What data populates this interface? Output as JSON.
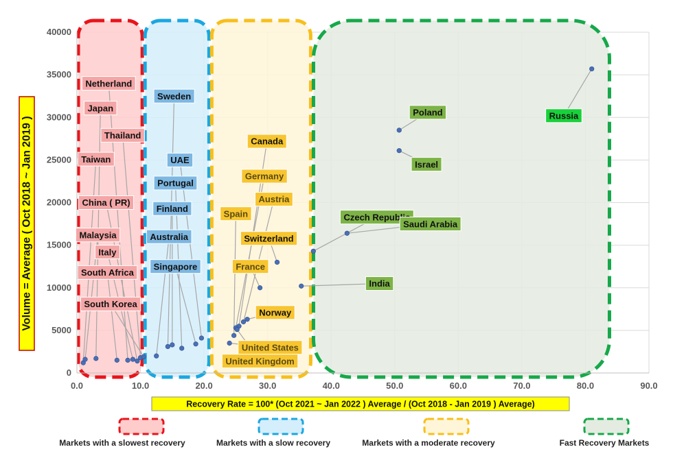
{
  "chart_data": {
    "type": "scatter",
    "xlabel": "Recovery Rate = 100* (Oct 2021 ~ Jan 2022 ) Average / (Oct 2018  - Jan 2019 )  Average)",
    "ylabel": "Volume = Average ( Oct 2018 ~ Jan 2019 )",
    "xlim": [
      0,
      90
    ],
    "ylim": [
      0,
      40000
    ],
    "x_ticks": [
      "0.0",
      "10.0",
      "20.0",
      "30.0",
      "40.0",
      "50.0",
      "60.0",
      "70.0",
      "80.0",
      "90.0"
    ],
    "y_ticks": [
      "0",
      "5000",
      "10000",
      "15000",
      "20000",
      "25000",
      "30000",
      "35000",
      "40000"
    ],
    "grid": true,
    "groups": [
      {
        "name": "Markets with a slowest recovery",
        "color": "#e8141b",
        "fill": "#ffcccc",
        "label_fill": "#f4a6a6",
        "x_range": [
          0,
          10.5
        ]
      },
      {
        "name": "Markets with a slow recovery",
        "color": "#1aa7e0",
        "fill": "#d4eefb",
        "label_fill": "#7db7e2",
        "x_range": [
          10.5,
          21
        ]
      },
      {
        "name": "Markets with a moderate recovery",
        "color": "#f7bf1b",
        "fill": "#fff5d8",
        "label_fill": "#f7c52f",
        "x_range": [
          21,
          37
        ]
      },
      {
        "name": "Fast Recovery Markets",
        "color": "#16a84a",
        "fill": "#e4ebe0",
        "label_fill": "#7db347",
        "x_range": [
          37,
          84
        ]
      }
    ],
    "points": [
      {
        "name": "Netherland",
        "x": 8.0,
        "y": 1500,
        "group": 0,
        "lx": 5.0,
        "ly": 34000
      },
      {
        "name": "Japan",
        "x": 3.0,
        "y": 1700,
        "group": 0,
        "lx": 3.7,
        "ly": 31100
      },
      {
        "name": "Thailand",
        "x": 10.0,
        "y": 1800,
        "group": 0,
        "lx": 7.2,
        "ly": 27900
      },
      {
        "name": "Taiwan",
        "x": 1.0,
        "y": 1200,
        "group": 0,
        "lx": 3.0,
        "ly": 25100
      },
      {
        "name": "China ( PR)",
        "x": 9.5,
        "y": 1400,
        "group": 0,
        "lx": 4.6,
        "ly": 20000
      },
      {
        "name": "Malaysia",
        "x": 1.3,
        "y": 1600,
        "group": 0,
        "lx": 3.3,
        "ly": 16200
      },
      {
        "name": "Italy",
        "x": 8.8,
        "y": 1600,
        "group": 0,
        "lx": 4.8,
        "ly": 14200
      },
      {
        "name": "South Africa",
        "x": 6.3,
        "y": 1500,
        "group": 0,
        "lx": 4.8,
        "ly": 11800
      },
      {
        "name": "South Korea",
        "x": 10.5,
        "y": 1900,
        "group": 0,
        "lx": 5.3,
        "ly": 8100
      },
      {
        "name": "Sweden",
        "x": 14.3,
        "y": 3100,
        "group": 1,
        "lx": 15.3,
        "ly": 32500
      },
      {
        "name": "UAE",
        "x": 19.6,
        "y": 4100,
        "group": 1,
        "lx": 16.2,
        "ly": 25000
      },
      {
        "name": "Portugal",
        "x": 16.5,
        "y": 2900,
        "group": 1,
        "lx": 15.5,
        "ly": 22300
      },
      {
        "name": "Finland",
        "x": 15.0,
        "y": 3300,
        "group": 1,
        "lx": 15.0,
        "ly": 19300
      },
      {
        "name": "Australia",
        "x": 12.5,
        "y": 2000,
        "group": 1,
        "lx": 14.5,
        "ly": 16000
      },
      {
        "name": "Singapore",
        "x": 18.7,
        "y": 3400,
        "group": 1,
        "lx": 15.5,
        "ly": 12500
      },
      {
        "name": "Canada",
        "x": 25.5,
        "y": 5500,
        "group": 2,
        "lx": 29.9,
        "ly": 27200
      },
      {
        "name": "Germany",
        "x": 25.0,
        "y": 5300,
        "group": 2,
        "lx": 29.5,
        "ly": 23100
      },
      {
        "name": "Austria",
        "x": 26.2,
        "y": 6000,
        "group": 2,
        "lx": 31.0,
        "ly": 20400
      },
      {
        "name": "Spain",
        "x": 24.7,
        "y": 4400,
        "group": 2,
        "lx": 25.0,
        "ly": 18700
      },
      {
        "name": "Switzerland",
        "x": 31.5,
        "y": 13000,
        "group": 2,
        "lx": 30.2,
        "ly": 15800
      },
      {
        "name": "France",
        "x": 28.8,
        "y": 10000,
        "group": 2,
        "lx": 27.3,
        "ly": 12500
      },
      {
        "name": "Norway",
        "x": 26.8,
        "y": 6300,
        "group": 2,
        "lx": 31.2,
        "ly": 7100
      },
      {
        "name": "United States",
        "x": 24.0,
        "y": 3500,
        "group": 2,
        "lx": 30.4,
        "ly": 3000
      },
      {
        "name": "United Kingdom",
        "x": 25.2,
        "y": 5100,
        "group": 2,
        "lx": 28.8,
        "ly": 1400
      },
      {
        "name": "Russia",
        "x": 81.0,
        "y": 35700,
        "group": 3,
        "lx": 76.6,
        "ly": 30200
      },
      {
        "name": "Poland",
        "x": 50.7,
        "y": 28500,
        "group": 3,
        "lx": 55.2,
        "ly": 30600
      },
      {
        "name": "Israel",
        "x": 50.7,
        "y": 26100,
        "group": 3,
        "lx": 55.0,
        "ly": 24500
      },
      {
        "name": "Czech Republic",
        "x": 37.2,
        "y": 14300,
        "group": 3,
        "lx": 47.2,
        "ly": 18300
      },
      {
        "name": "Saudi Arabia",
        "x": 42.5,
        "y": 16400,
        "group": 3,
        "lx": 55.6,
        "ly": 17500
      },
      {
        "name": "India",
        "x": 35.3,
        "y": 10200,
        "group": 3,
        "lx": 47.6,
        "ly": 10500
      }
    ]
  }
}
